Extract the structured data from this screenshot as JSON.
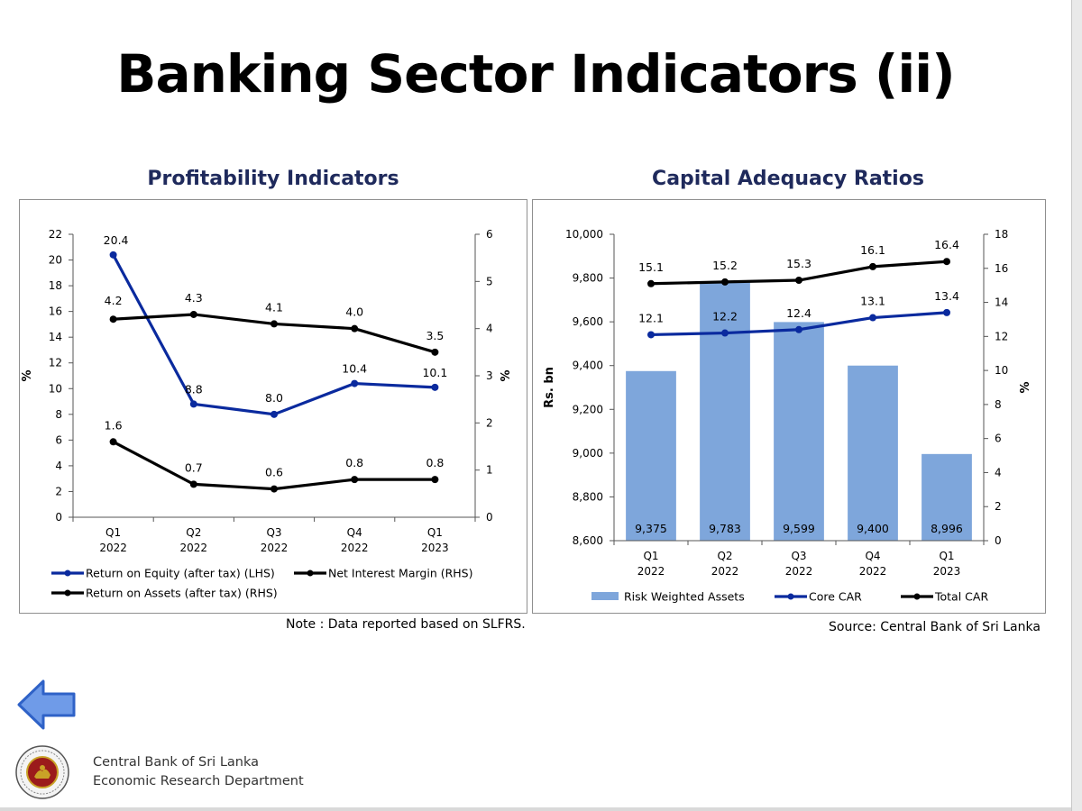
{
  "slide": {
    "title": "Banking Sector Indicators (ii)",
    "note": "Note : Data reported based on SLFRS.",
    "source": "Source: Central Bank of Sri Lanka",
    "org_name": "Central Bank of Sri Lanka",
    "dept_name": "Economic Research Department",
    "colors": {
      "heading": "#1f2a5c",
      "blue": "#0a2a9e",
      "black": "#000000",
      "bar": "#7ea6db",
      "arrow": "#2f62c7"
    }
  },
  "chart_data": [
    {
      "type": "line",
      "title": "Profitability Indicators",
      "categories": [
        "Q1",
        "Q2",
        "Q3",
        "Q4",
        "Q1"
      ],
      "category_years": [
        "2022",
        "2022",
        "2022",
        "2022",
        "2023"
      ],
      "ylabel_left": "%",
      "ylabel_right": "%",
      "ylim_left": [
        0,
        22
      ],
      "yticks_left": [
        0,
        2,
        4,
        6,
        8,
        10,
        12,
        14,
        16,
        18,
        20,
        22
      ],
      "ylim_right": [
        0,
        6
      ],
      "yticks_right": [
        0,
        1,
        2,
        3,
        4,
        5,
        6
      ],
      "grid": false,
      "legend_position": "bottom",
      "series": [
        {
          "name": "Return on Equity (after tax) (LHS)",
          "axis": "left",
          "color": "#0a2a9e",
          "values": [
            20.4,
            8.8,
            8.0,
            10.4,
            10.1
          ],
          "labels": [
            "20.4",
            "8.8",
            "8.0",
            "10.4",
            "10.1"
          ]
        },
        {
          "name": "Net Interest Margin (RHS)",
          "axis": "right",
          "color": "#000000",
          "values": [
            4.2,
            4.3,
            4.1,
            4.0,
            3.5
          ],
          "labels": [
            "4.2",
            "4.3",
            "4.1",
            "4.0",
            "3.5"
          ]
        },
        {
          "name": "Return on Assets (after tax) (RHS)",
          "axis": "right",
          "color": "#000000",
          "values": [
            1.6,
            0.7,
            0.6,
            0.8,
            0.8
          ],
          "labels": [
            "1.6",
            "0.7",
            "0.6",
            "0.8",
            "0.8"
          ]
        }
      ]
    },
    {
      "type": "bar",
      "title": "Capital Adequacy Ratios",
      "categories": [
        "Q1",
        "Q2",
        "Q3",
        "Q4",
        "Q1"
      ],
      "category_years": [
        "2022",
        "2022",
        "2022",
        "2022",
        "2023"
      ],
      "ylabel_left": "Rs. bn",
      "ylabel_right": "%",
      "ylim_left": [
        8600,
        10000
      ],
      "yticks_left": [
        8600,
        8800,
        9000,
        9200,
        9400,
        9600,
        9800,
        10000
      ],
      "ytick_labels_left": [
        "8,600",
        "8,800",
        "9,000",
        "9,200",
        "9,400",
        "9,600",
        "9,800",
        "10,000"
      ],
      "ylim_right": [
        0,
        18
      ],
      "yticks_right": [
        0,
        2,
        4,
        6,
        8,
        10,
        12,
        14,
        16,
        18
      ],
      "grid": false,
      "legend_position": "bottom",
      "bars": {
        "name": "Risk Weighted Assets",
        "axis": "left",
        "color": "#7ea6db",
        "values": [
          9375,
          9783,
          9599,
          9400,
          8996
        ],
        "labels": [
          "9,375",
          "9,783",
          "9,599",
          "9,400",
          "8,996"
        ]
      },
      "series": [
        {
          "name": "Core CAR",
          "axis": "right",
          "color": "#0a2a9e",
          "values": [
            12.1,
            12.2,
            12.4,
            13.1,
            13.4
          ],
          "labels": [
            "12.1",
            "12.2",
            "12.4",
            "13.1",
            "13.4"
          ]
        },
        {
          "name": "Total CAR",
          "axis": "right",
          "color": "#000000",
          "values": [
            15.1,
            15.2,
            15.3,
            16.1,
            16.4
          ],
          "labels": [
            "15.1",
            "15.2",
            "15.3",
            "16.1",
            "16.4"
          ]
        }
      ]
    }
  ]
}
